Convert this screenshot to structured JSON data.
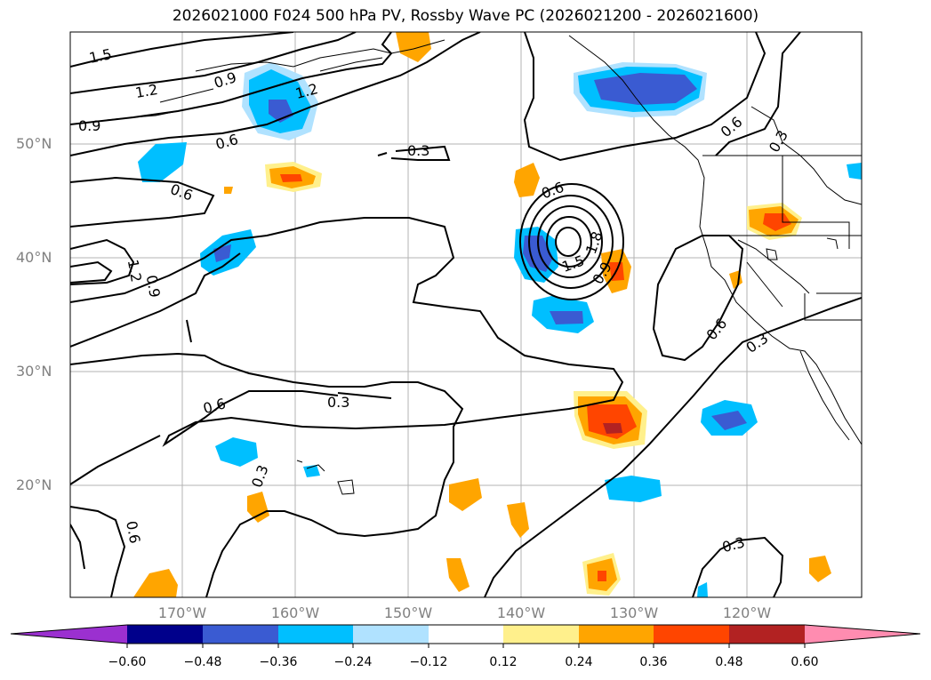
{
  "title": "2026021000 F024 500 hPa PV, Rossby Wave PC (2026021200 - 2026021600)",
  "latitude_labels": [
    "50°N",
    "40°N",
    "30°N",
    "20°N"
  ],
  "longitude_labels": [
    "170°W",
    "160°W",
    "150°W",
    "140°W",
    "130°W",
    "120°W"
  ],
  "contour_labels": [
    "1.5",
    "1.2",
    "0.9",
    "1.2",
    "0.9",
    "0.6",
    "0.3",
    "0.6",
    "0.6",
    "1.2",
    "0.9",
    "0.6",
    "0.3",
    "0.6",
    "0.3",
    "0.6",
    "0.3",
    "0.6",
    "0.3",
    "0.3",
    "1.5",
    "1.8",
    "0.9"
  ],
  "colorbar": {
    "ticks": [
      "−0.60",
      "−0.48",
      "−0.36",
      "−0.24",
      "−0.12",
      "0.12",
      "0.24",
      "0.36",
      "0.48",
      "0.60"
    ],
    "colors": [
      "#9b30d0",
      "#00008b",
      "#3a5bd2",
      "#00bfff",
      "#b0e2ff",
      "#ffffff",
      "#fff08c",
      "#ffa500",
      "#ff4500",
      "#b22222",
      "#ff8cb0"
    ]
  }
}
